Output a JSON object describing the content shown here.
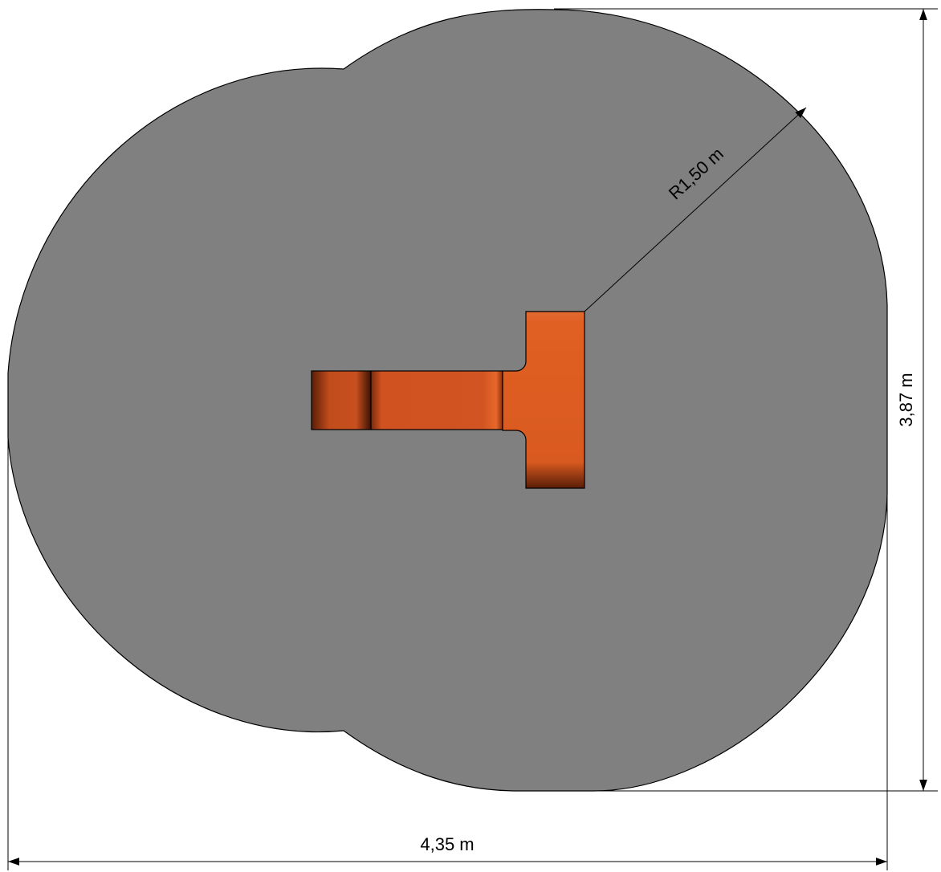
{
  "drawing": {
    "colors": {
      "zone_fill": "#808080",
      "equipment_fill": "#d45420",
      "equipment_highlight": "#e8682a",
      "equipment_shadow": "#5a1e08",
      "line": "#000000",
      "background": "#ffffff"
    },
    "dimensions": {
      "radius_label": "R1,50 m",
      "height_label": "3,87 m",
      "width_label": "4,35 m"
    }
  }
}
